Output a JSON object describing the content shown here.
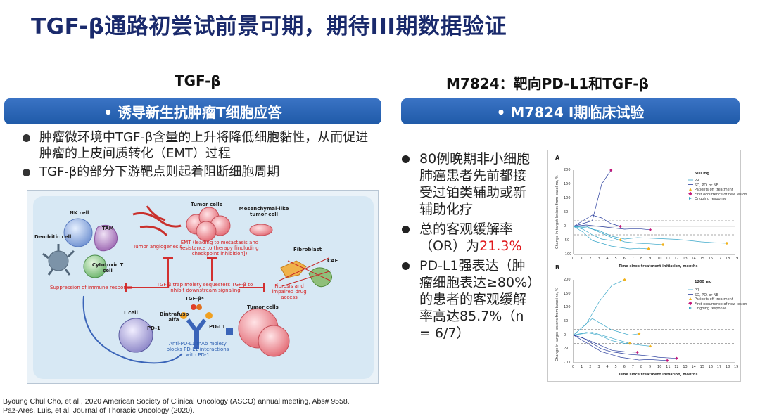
{
  "title": "TGF-β通路初尝试前景可期，期待III期数据验证",
  "left": {
    "heading": "TGF-β",
    "bar_label": "• 诱导新生抗肿瘤T细胞应答",
    "bullets": [
      "肿瘤微环境中TGF-β含量的上升将降低细胞黏性，从而促进肿瘤的上皮间质转化（EMT）过程",
      "TGF-β的部分下游靶点则起着阻断细胞周期"
    ],
    "figure": {
      "nk_cell": "NK cell",
      "tam": "TAM",
      "dendritic": "Dendritic cell",
      "cytotoxic": "Cytotoxic T cell",
      "tumor_cells_top": "Tumor cells",
      "mesenchymal": "Mesenchymal-like tumor cell",
      "angiogenesis": "Tumor angiogenesis",
      "emt": "EMT (leading to metastasis and resistance to therapy [including checkpoint inhibition])",
      "fibroblast": "Fibroblast",
      "caf": "CAF",
      "suppression": "Suppression of immune response",
      "trap": "TGF-β trap moiety sequesters TGF-β to inhibit downstream signaling",
      "fibrosis": "Fibrosis and impaired drug access",
      "tgfb": "TGF-β*",
      "tcell": "T cell",
      "pd1": "PD-1",
      "bintrafusp": "Bintrafusp alfa",
      "pdl1": "PD-L1",
      "tumor_cells_bottom": "Tumor cells",
      "anti_pdl1": "Anti-PD-L1 mAb moiety blocks PD-L1 interactions with PD-1"
    }
  },
  "right": {
    "heading": "M7824：靶向PD-L1和TGF-β",
    "bar_label": "• M7824 I期临床试验",
    "bullets": [
      {
        "pre": "80例晚期非小细胞肺癌患者先前都接受过铂类辅助或新辅助化疗",
        "hl": "",
        "post": ""
      },
      {
        "pre": "总的客观缓解率（OR）为",
        "hl": "21.3%",
        "post": ""
      },
      {
        "pre": "PD-L1强表达（肿瘤细胞表达≥80%）的患者的客观缓解率高达85.7%（n = 6/7）",
        "hl": "",
        "post": ""
      }
    ],
    "chart": {
      "panels": [
        {
          "letter": "A",
          "dose": "500 mg"
        },
        {
          "letter": "B",
          "dose": "1200 mg"
        }
      ],
      "legend": [
        "PR",
        "SD, PD, or NE",
        "Patients off treatment",
        "First occurrence of new lesion",
        "Ongoing response"
      ],
      "ylabel": "Change in target lesions from baseline, %",
      "xlabel": "Time since treatment initiation, months",
      "yticks": [
        "200",
        "150",
        "100",
        "50",
        "0",
        "-50",
        "-100"
      ],
      "xticks": [
        "0",
        "1",
        "2",
        "3",
        "4",
        "5",
        "6",
        "7",
        "8",
        "9",
        "10",
        "11",
        "12",
        "13",
        "14",
        "15",
        "16",
        "17",
        "18",
        "19"
      ],
      "colors": {
        "pr": "#3aa7c9",
        "sd": "#2b3f9e",
        "off": "#f2b21a",
        "new": "#c2187a",
        "ongoing": "#3aa7c9"
      }
    }
  },
  "references": [
    "Byoung Chul Cho, et al., 2020 American Society of Clinical Oncology (ASCO) annual meeting, Abs# 9558.",
    "Paz-Ares, Luis, et al.  Journal of Thoracic Oncology (2020)."
  ]
}
